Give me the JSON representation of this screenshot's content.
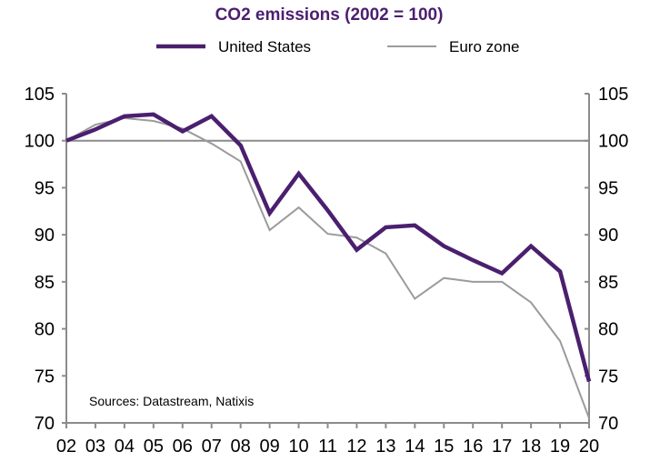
{
  "chart_data": {
    "type": "line",
    "title": "CO2 emissions (2002 = 100)",
    "xlabel": "",
    "ylabel": "",
    "x": [
      "02",
      "03",
      "04",
      "05",
      "06",
      "07",
      "08",
      "09",
      "10",
      "11",
      "12",
      "13",
      "14",
      "15",
      "16",
      "17",
      "18",
      "19",
      "20"
    ],
    "ylim": [
      70,
      105
    ],
    "yticks": [
      70,
      75,
      80,
      85,
      90,
      95,
      100,
      105
    ],
    "reference_line": 100,
    "legend_position": "top",
    "annotation": "Sources: Datastream,  Natixis",
    "series": [
      {
        "name": "United States",
        "color": "#4b1f6f",
        "values": [
          100,
          101.2,
          102.6,
          102.8,
          101.0,
          102.6,
          99.5,
          92.3,
          96.5,
          92.6,
          88.4,
          90.8,
          91.0,
          88.8,
          87.3,
          85.9,
          88.8,
          86.1,
          74.4
        ]
      },
      {
        "name": "Euro zone",
        "color": "#9b9b9b",
        "values": [
          100,
          101.7,
          102.4,
          102.1,
          101.3,
          99.7,
          97.8,
          90.5,
          92.9,
          90.1,
          89.7,
          88.0,
          83.2,
          85.4,
          85.0,
          85.0,
          82.8,
          78.7,
          70.5
        ]
      }
    ]
  }
}
